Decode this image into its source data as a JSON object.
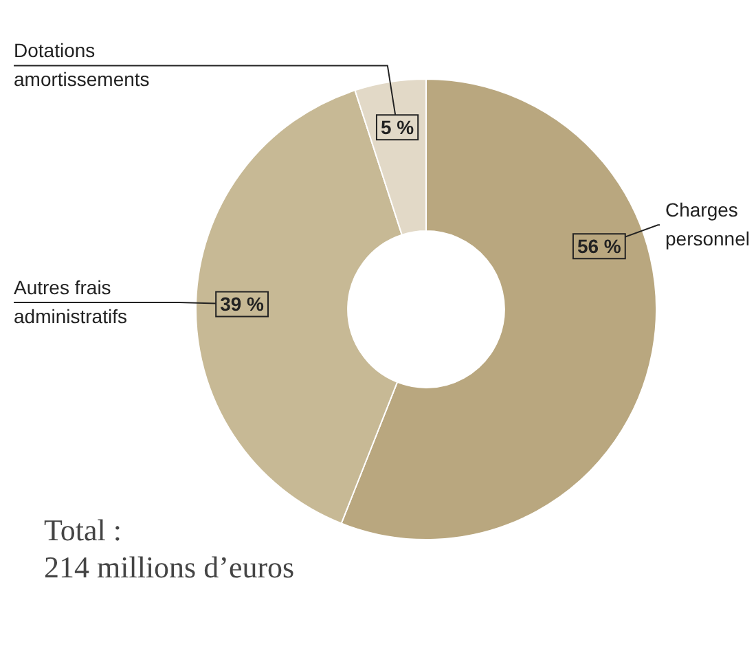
{
  "chart_data": {
    "type": "donut",
    "categories": [
      "Charges personnel",
      "Autres frais administratifs",
      "Dotations amortissements"
    ],
    "values": [
      56,
      39,
      5
    ],
    "colors": [
      "#b9a77f",
      "#c7b995",
      "#e2d9c7"
    ],
    "value_labels": [
      "56 %",
      "39 %",
      "5 %"
    ],
    "legend": false,
    "annotations": [
      "Total :\n214 millions d’euros"
    ]
  }
}
